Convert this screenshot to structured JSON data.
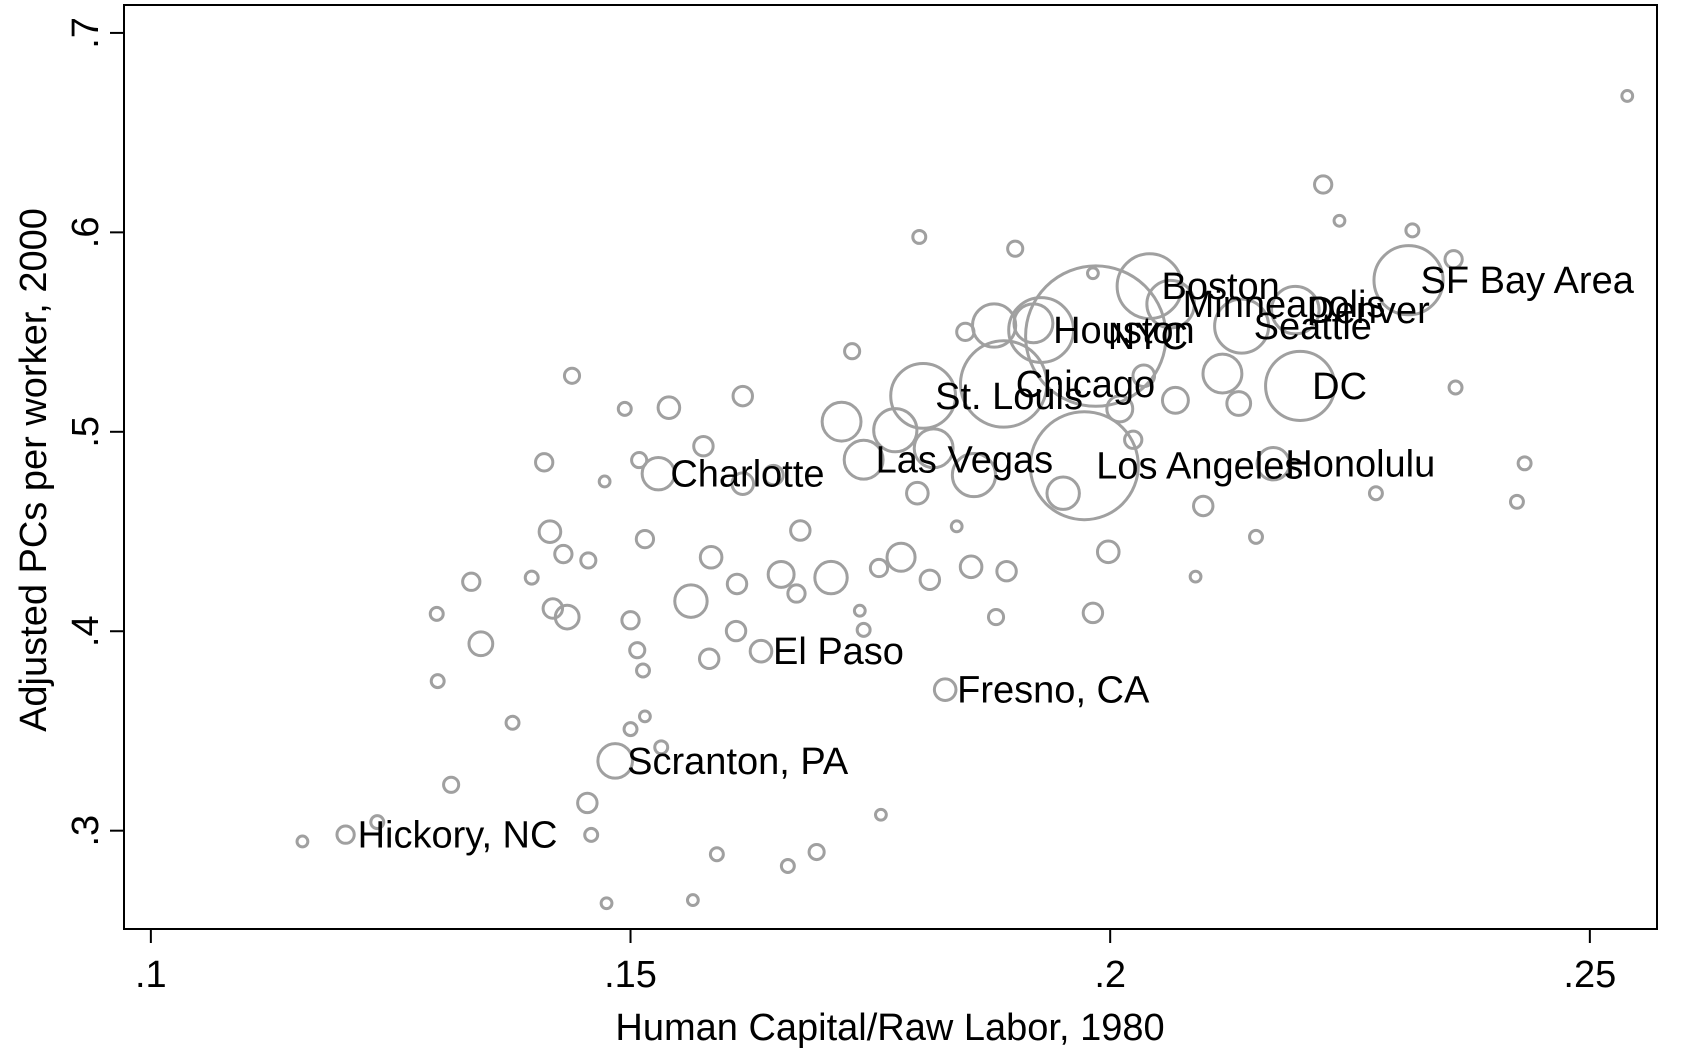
{
  "chart_data": {
    "type": "scatter",
    "x_label": "Human Capital/Raw Labor, 1980",
    "y_label": "Adjusted PCs per worker, 2000",
    "xlim": [
      0.0972,
      0.257
    ],
    "ylim": [
      0.2507,
      0.714
    ],
    "xticks": [
      {
        "value": 0.1,
        "label": ".1"
      },
      {
        "value": 0.15,
        "label": ".15"
      },
      {
        "value": 0.2,
        "label": ".2"
      },
      {
        "value": 0.25,
        "label": ".25"
      }
    ],
    "yticks": [
      {
        "value": 0.3,
        "label": ".3"
      },
      {
        "value": 0.4,
        "label": ".4"
      },
      {
        "value": 0.5,
        "label": ".5"
      },
      {
        "value": 0.6,
        "label": ".6"
      },
      {
        "value": 0.7,
        "label": ".7"
      }
    ],
    "color": "#a0a0a0",
    "grid": false,
    "x": [
      0.1203,
      0.1484,
      0.1636,
      0.1828,
      0.1529,
      0.1743,
      0.1805,
      0.1889,
      0.1928,
      0.1985,
      0.1973,
      0.2041,
      0.2063,
      0.2137,
      0.2193,
      0.2198,
      0.217,
      0.2311,
      0.2539,
      0.2222,
      0.2239,
      0.2315,
      0.2358,
      0.1801,
      0.1901,
      0.236,
      0.2432,
      0.2424,
      0.2277,
      0.2152,
      0.2089,
      0.1439,
      0.1494,
      0.154,
      0.141,
      0.1473,
      0.1509,
      0.1576,
      0.1617,
      0.1731,
      0.1416,
      0.143,
      0.1456,
      0.1334,
      0.1397,
      0.1419,
      0.1434,
      0.1298,
      0.1344,
      0.1299,
      0.1377,
      0.1313,
      0.1236,
      0.1158,
      0.1455,
      0.1459,
      0.1475,
      0.1565,
      0.159,
      0.1664,
      0.1694,
      0.1761,
      0.15,
      0.1507,
      0.1513,
      0.1515,
      0.15,
      0.1563,
      0.1582,
      0.161,
      0.1611,
      0.1584,
      0.1515,
      0.1657,
      0.1673,
      0.1709,
      0.1739,
      0.1743,
      0.1759,
      0.1782,
      0.1812,
      0.184,
      0.1855,
      0.1892,
      0.1881,
      0.1982,
      0.1998,
      0.1951,
      0.2024,
      0.2097,
      0.2068,
      0.2117,
      0.2134,
      0.1982,
      0.1849,
      0.1879,
      0.192,
      0.201,
      0.172,
      0.1776,
      0.1816,
      0.1858,
      0.1799,
      0.1617,
      0.1649,
      0.1677,
      0.1532,
      0.2035
    ],
    "y": [
      0.298,
      0.335,
      0.39,
      0.3707,
      0.479,
      0.486,
      0.518,
      0.524,
      0.551,
      0.548,
      0.483,
      0.573,
      0.564,
      0.553,
      0.561,
      0.523,
      0.484,
      0.576,
      0.6684,
      0.624,
      0.6058,
      0.601,
      0.5865,
      0.5977,
      0.5918,
      0.5222,
      0.4842,
      0.4649,
      0.4692,
      0.4473,
      0.4274,
      0.5281,
      0.5115,
      0.5121,
      0.4847,
      0.4751,
      0.4858,
      0.4928,
      0.5179,
      0.5404,
      0.4499,
      0.4387,
      0.4355,
      0.4248,
      0.4269,
      0.4114,
      0.4071,
      0.4087,
      0.3937,
      0.375,
      0.3541,
      0.323,
      0.3043,
      0.2946,
      0.3139,
      0.2979,
      0.2636,
      0.2652,
      0.2882,
      0.2823,
      0.2893,
      0.308,
      0.4055,
      0.3905,
      0.3803,
      0.3573,
      0.3509,
      0.4151,
      0.3862,
      0.4001,
      0.4237,
      0.4371,
      0.4462,
      0.4285,
      0.4189,
      0.4269,
      0.4103,
      0.4007,
      0.4317,
      0.4371,
      0.4258,
      0.4526,
      0.4323,
      0.4301,
      0.4071,
      0.4092,
      0.4398,
      0.4692,
      0.496,
      0.4628,
      0.5158,
      0.5292,
      0.5142,
      0.5795,
      0.5501,
      0.5533,
      0.5544,
      0.5115,
      0.5051,
      0.5008,
      0.4917,
      0.4783,
      0.4692,
      0.474,
      0.4783,
      0.4505,
      0.3418,
      0.5281
    ],
    "sizes": [
      8,
      16,
      10,
      10,
      15,
      18,
      30,
      40,
      30,
      65,
      50,
      30,
      22,
      25,
      22,
      32,
      15,
      32,
      5,
      8,
      5,
      6,
      8,
      6,
      7,
      6,
      6,
      6,
      6,
      6,
      5,
      7,
      6,
      10,
      8,
      5,
      7,
      9,
      9,
      7,
      10,
      8,
      7,
      8,
      6,
      9,
      11,
      6,
      11,
      6,
      6,
      7,
      6,
      5,
      9,
      6,
      5,
      5,
      6,
      6,
      7,
      5,
      8,
      7,
      6,
      5,
      6,
      15,
      9,
      9,
      9,
      10,
      8,
      12,
      8,
      15,
      5,
      6,
      8,
      13,
      9,
      5,
      10,
      9,
      7,
      9,
      10,
      15,
      8,
      9,
      12,
      18,
      11,
      5,
      8,
      20,
      18,
      12,
      18,
      20,
      18,
      20,
      10,
      10,
      9,
      9,
      6,
      10
    ],
    "labels": [
      "Hickory, NC",
      "Scranton, PA",
      "El Paso",
      "Fresno, CA",
      "Charlotte",
      "Las Vegas",
      "St. Louis",
      "Chicago",
      "Houston",
      "NYC",
      "Los Angeles",
      "Boston",
      "Minneapolis",
      "Seattle",
      "Denver",
      "DC",
      "Honolulu",
      "SF Bay Area",
      null,
      null,
      null,
      null,
      null,
      null,
      null,
      null,
      null,
      null,
      null,
      null,
      null,
      null,
      null,
      null,
      null,
      null,
      null,
      null,
      null,
      null,
      null,
      null,
      null,
      null,
      null,
      null,
      null,
      null,
      null,
      null,
      null,
      null,
      null,
      null,
      null,
      null,
      null,
      null,
      null,
      null,
      null,
      null,
      null,
      null,
      null,
      null,
      null,
      null,
      null,
      null,
      null,
      null,
      null,
      null,
      null,
      null,
      null,
      null,
      null,
      null,
      null,
      null,
      null,
      null,
      null,
      null,
      null,
      null,
      null,
      null,
      null,
      null,
      null,
      null,
      null,
      null,
      null,
      null,
      null,
      null,
      null,
      null,
      null,
      null
    ]
  }
}
